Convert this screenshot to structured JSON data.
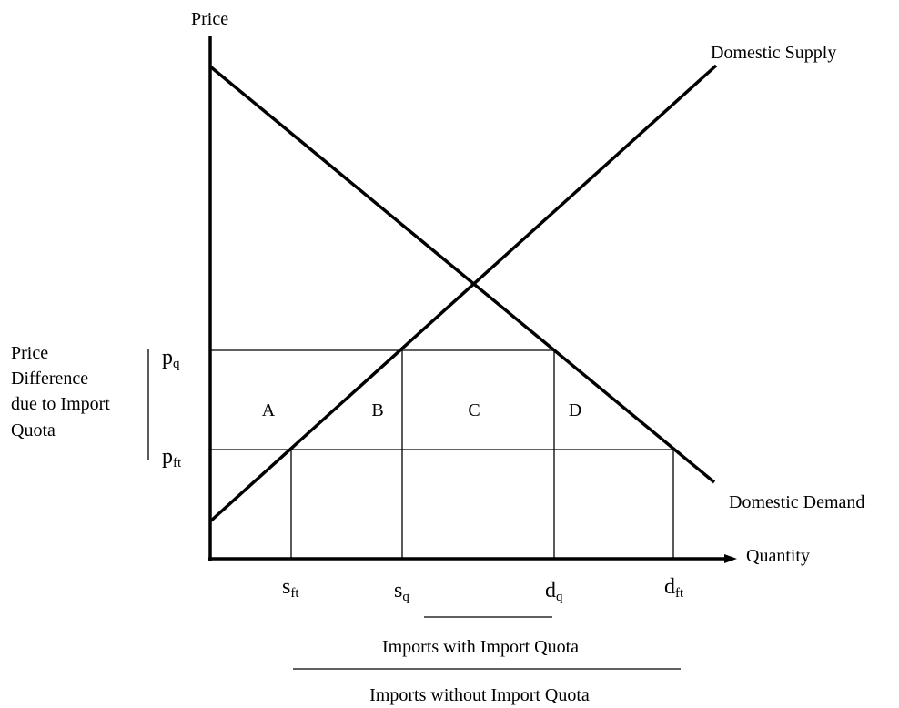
{
  "axes": {
    "y_label": "Price",
    "x_label": "Quantity"
  },
  "curves": {
    "supply": "Domestic Supply",
    "demand": "Domestic Demand"
  },
  "bracket_label": [
    "Price",
    "Difference",
    "due to Import",
    "Quota"
  ],
  "prices": [
    {
      "main": "p",
      "sub": "q"
    },
    {
      "main": "p",
      "sub": "ft"
    }
  ],
  "areas": [
    "A",
    "B",
    "C",
    "D"
  ],
  "quantities": [
    {
      "main": "s",
      "sub": "ft"
    },
    {
      "main": "s",
      "sub": "q"
    },
    {
      "main": "d",
      "sub": "q"
    },
    {
      "main": "d",
      "sub": "ft"
    }
  ],
  "imports": {
    "with_quota": "Imports with Import Quota",
    "without_quota": "Imports without Import Quota"
  }
}
